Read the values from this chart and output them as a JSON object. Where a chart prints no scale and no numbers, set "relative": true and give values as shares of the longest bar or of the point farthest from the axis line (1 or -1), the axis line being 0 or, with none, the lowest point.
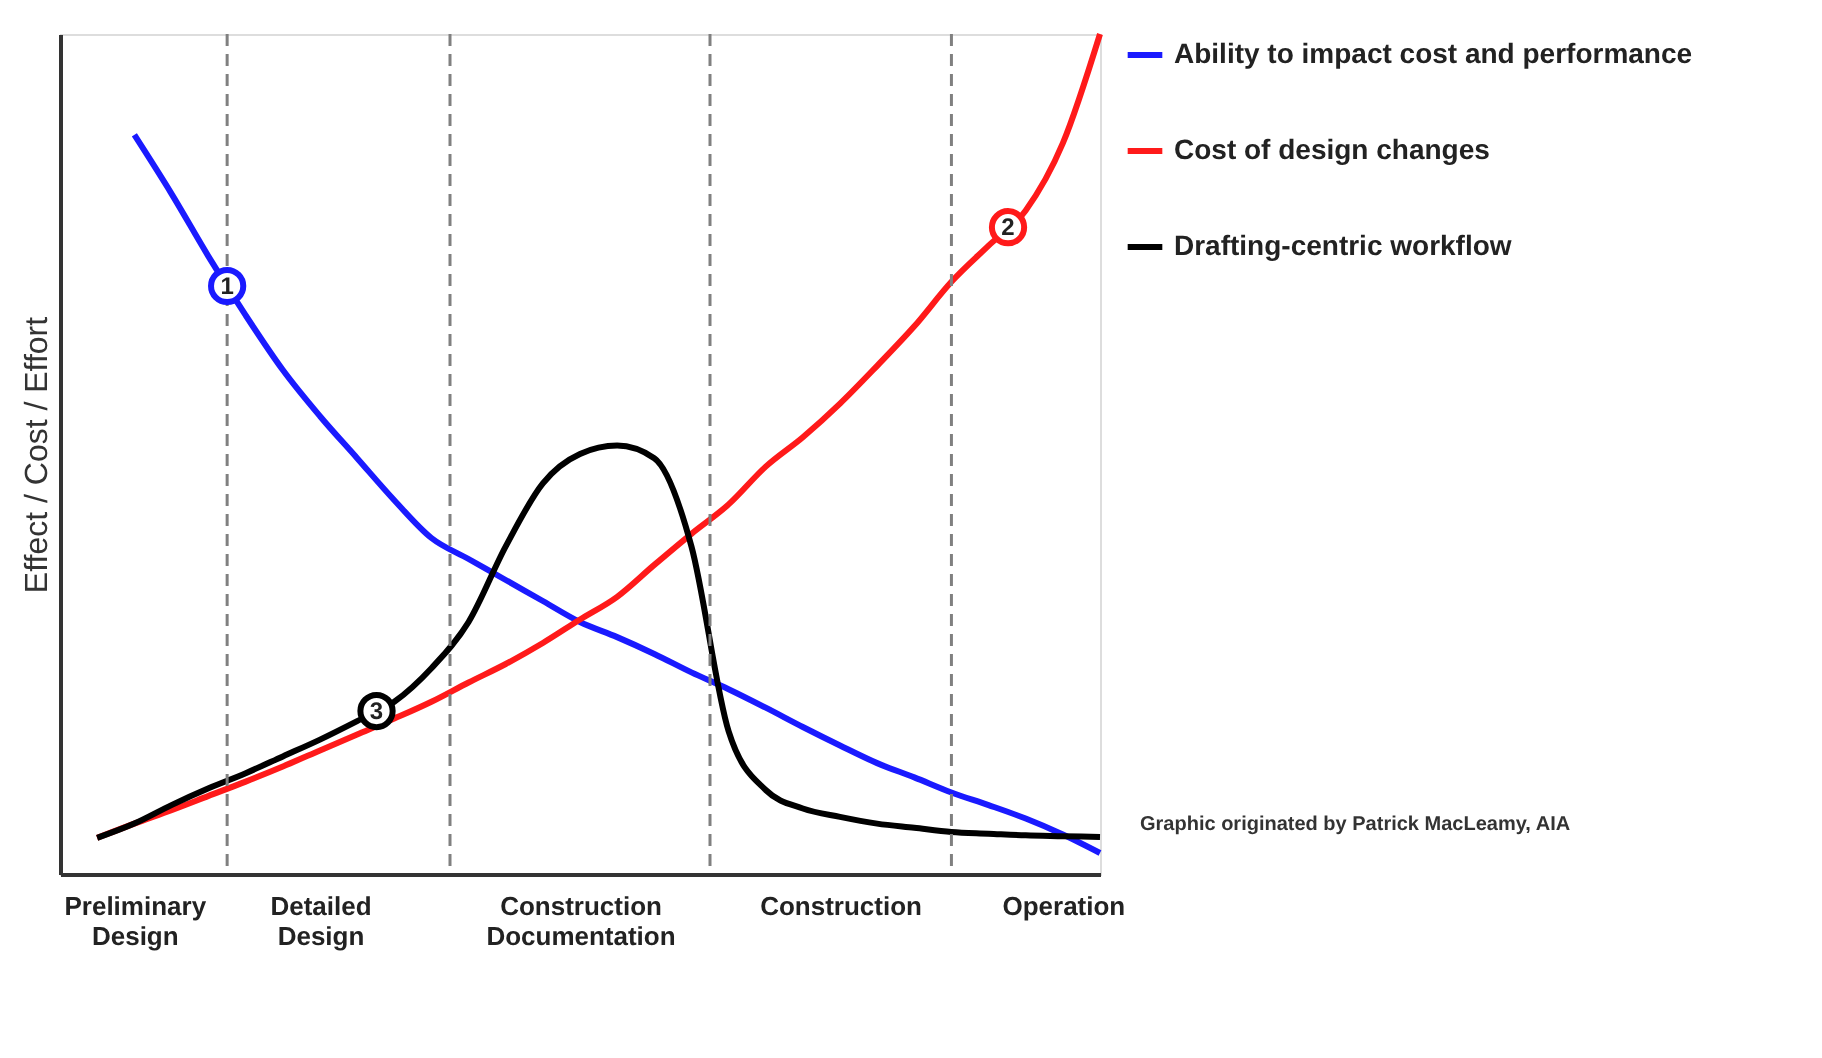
{
  "chart_data": {
    "type": "line",
    "relative": true,
    "ylabel": "Effect / Cost / Effort",
    "categories": [
      null,
      null,
      "Preliminary Design",
      null,
      null,
      null,
      null,
      "Detailed Design",
      null,
      null,
      null,
      null,
      null,
      null,
      "Construction Documentation",
      null,
      null,
      null,
      null,
      null,
      null,
      "Construction",
      null,
      null,
      null,
      null,
      null,
      "Operation",
      null
    ],
    "tick_labels": "x",
    "grid": "x",
    "legend": "right",
    "marker": "none",
    "line_style": "solid",
    "series": [
      {
        "name": "Ability to impact cost and performance",
        "color": "#1a1aff",
        "values": [
          null,
          null,
          0.88,
          0.81,
          0.735,
          0.665,
          0.6,
          0.545,
          0.495,
          0.445,
          0.4,
          0.375,
          0.35,
          0.325,
          0.3,
          0.282,
          0.262,
          0.24,
          0.22,
          0.198,
          0.175,
          0.153,
          0.132,
          0.115,
          0.097,
          0.082,
          0.066,
          0.047,
          0.025
        ]
      },
      {
        "name": "Cost of design changes",
        "color": "#ff1a1a",
        "values": [
          null,
          0.043,
          0.06,
          0.076,
          0.093,
          0.11,
          0.128,
          0.147,
          0.166,
          0.185,
          0.205,
          0.228,
          0.25,
          0.275,
          0.303,
          0.33,
          0.368,
          0.405,
          0.44,
          0.485,
          0.52,
          0.56,
          0.605,
          0.652,
          0.705,
          0.748,
          0.79,
          0.87,
          1.0
        ]
      },
      {
        "name": "Drafting-centric workflow",
        "color": "#000000",
        "values": [
          null,
          0.043,
          0.06,
          0.082,
          0.102,
          0.12,
          0.14,
          0.16,
          0.182,
          0.205,
          0.245,
          0.3,
          0.39,
          0.465,
          0.5,
          0.51,
          0.495,
          0.39,
          0.17,
          0.1,
          0.078,
          0.068,
          0.06,
          0.055,
          0.05,
          0.048,
          0.046,
          0.045,
          0.044
        ]
      }
    ],
    "annotations": [
      {
        "text": "1",
        "y": 0.7
      },
      {
        "text": "2",
        "y": 0.77
      },
      {
        "text": "3",
        "y": 0.194
      },
      "Graphic originated by Patrick MacLeamy, AIA"
    ]
  }
}
